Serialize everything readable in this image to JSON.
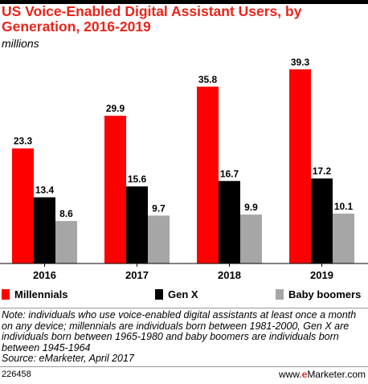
{
  "chart_data": {
    "type": "bar",
    "title": "US Voice-Enabled Digital Assistant Users, by Generation, 2016-2019",
    "subtitle": "millions",
    "categories": [
      "2016",
      "2017",
      "2018",
      "2019"
    ],
    "series": [
      {
        "name": "Millennials",
        "color": "#ff0000",
        "values": [
          23.3,
          29.9,
          35.8,
          39.3
        ],
        "labels": [
          "23.3",
          "29.9",
          "35.8",
          "39.3"
        ]
      },
      {
        "name": "Gen X",
        "color": "#000000",
        "values": [
          13.4,
          15.6,
          16.7,
          17.2
        ],
        "labels": [
          "13.4",
          "15.6",
          "16.7",
          "17.2"
        ]
      },
      {
        "name": "Baby boomers",
        "color": "#a6a6a6",
        "values": [
          8.6,
          9.7,
          9.9,
          10.1
        ],
        "labels": [
          "8.6",
          "9.7",
          "9.9",
          "10.1"
        ]
      }
    ],
    "ylim": [
      0,
      40
    ],
    "grid": false,
    "legend_position": "bottom"
  },
  "note": "Note: individuals who use voice-enabled digital assistants at least once a month on any device; millennials are individuals born between 1981-2000, Gen X are individuals born between 1965-1980 and baby boomers are individuals born between 1945-1964",
  "source": "Source: eMarketer, April 2017",
  "chart_id": "226458",
  "brand": {
    "prefix": "www.",
    "e": "e",
    "rest": "Marketer.com"
  }
}
